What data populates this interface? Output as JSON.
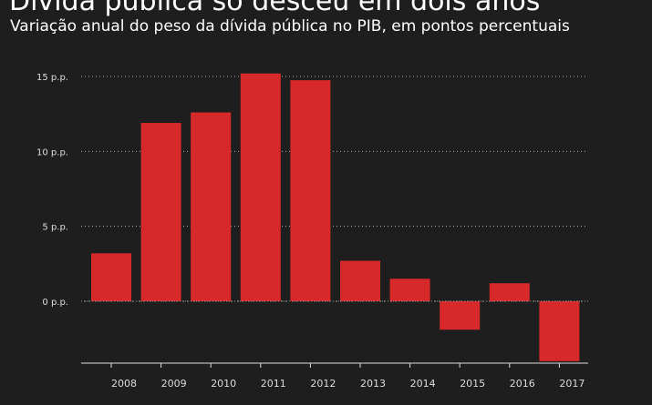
{
  "chart_data": {
    "type": "bar",
    "title": "Dívida pública só desceu em dois anos",
    "subtitle": "Variação anual do peso da dívida pública no PIB, em pontos percentuais",
    "xlabel": "",
    "ylabel": "",
    "categories": [
      "2008",
      "2009",
      "2010",
      "2011",
      "2012",
      "2013",
      "2014",
      "2015",
      "2016",
      "2017"
    ],
    "values": [
      3.2,
      11.9,
      12.6,
      15.2,
      14.75,
      2.7,
      1.5,
      -1.9,
      1.2,
      -4.0
    ],
    "ylim": [
      -4.1,
      15.5
    ],
    "yticks": [
      0,
      5,
      10,
      15
    ],
    "ytick_labels": [
      "0 p.p.",
      "5 p.p.",
      "10 p.p.",
      "15 p.p."
    ],
    "grid": true,
    "bar_color": "#d7282a"
  }
}
